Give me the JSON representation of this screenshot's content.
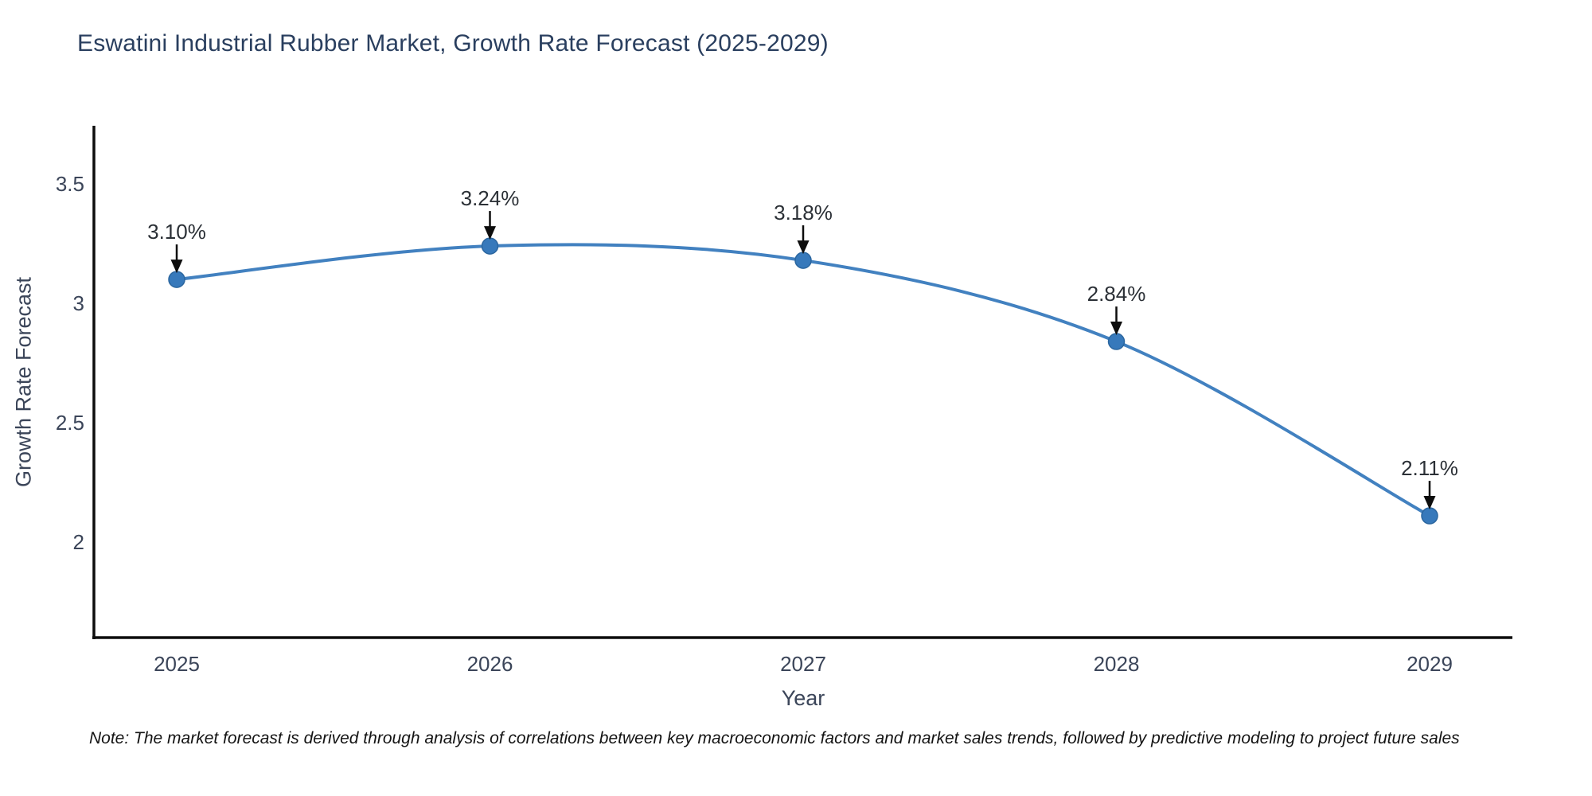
{
  "title": "Eswatini Industrial Rubber Market, Growth Rate Forecast (2025-2029)",
  "note": "Note: The market forecast is derived through analysis of correlations between key macroeconomic factors and market sales trends, followed by predictive modeling to project future sales",
  "chart_data": {
    "type": "line",
    "title": "Eswatini Industrial Rubber Market, Growth Rate Forecast (2025-2029)",
    "xlabel": "Year",
    "ylabel": "Growth Rate Forecast",
    "x": [
      2025,
      2026,
      2027,
      2028,
      2029
    ],
    "y": [
      3.1,
      3.24,
      3.18,
      2.84,
      2.11
    ],
    "series": [
      {
        "name": "Growth Rate Forecast",
        "values": [
          3.1,
          3.24,
          3.18,
          2.84,
          2.11
        ]
      }
    ],
    "point_labels": [
      "3.10%",
      "3.24%",
      "3.18%",
      "2.84%",
      "2.11%"
    ],
    "xtick_labels": [
      "2025",
      "2026",
      "2027",
      "2028",
      "2029"
    ],
    "ytick_values": [
      2,
      2.5,
      3,
      3.5
    ],
    "ytick_labels": [
      "2",
      "2.5",
      "3",
      "3.5"
    ],
    "ylim": [
      1.6,
      3.737
    ],
    "line_shape": "spline",
    "grid": false,
    "legend": "none",
    "colors": {
      "line": "#4281c0",
      "marker": "#3779bb",
      "marker_edge": "#2b669f",
      "axis": "#0d0d0d",
      "arrow": "#0d0d0d",
      "title_text": "#2a3f5f",
      "tick_text": "#3b4559",
      "annotation_text": "#2b3036"
    }
  }
}
